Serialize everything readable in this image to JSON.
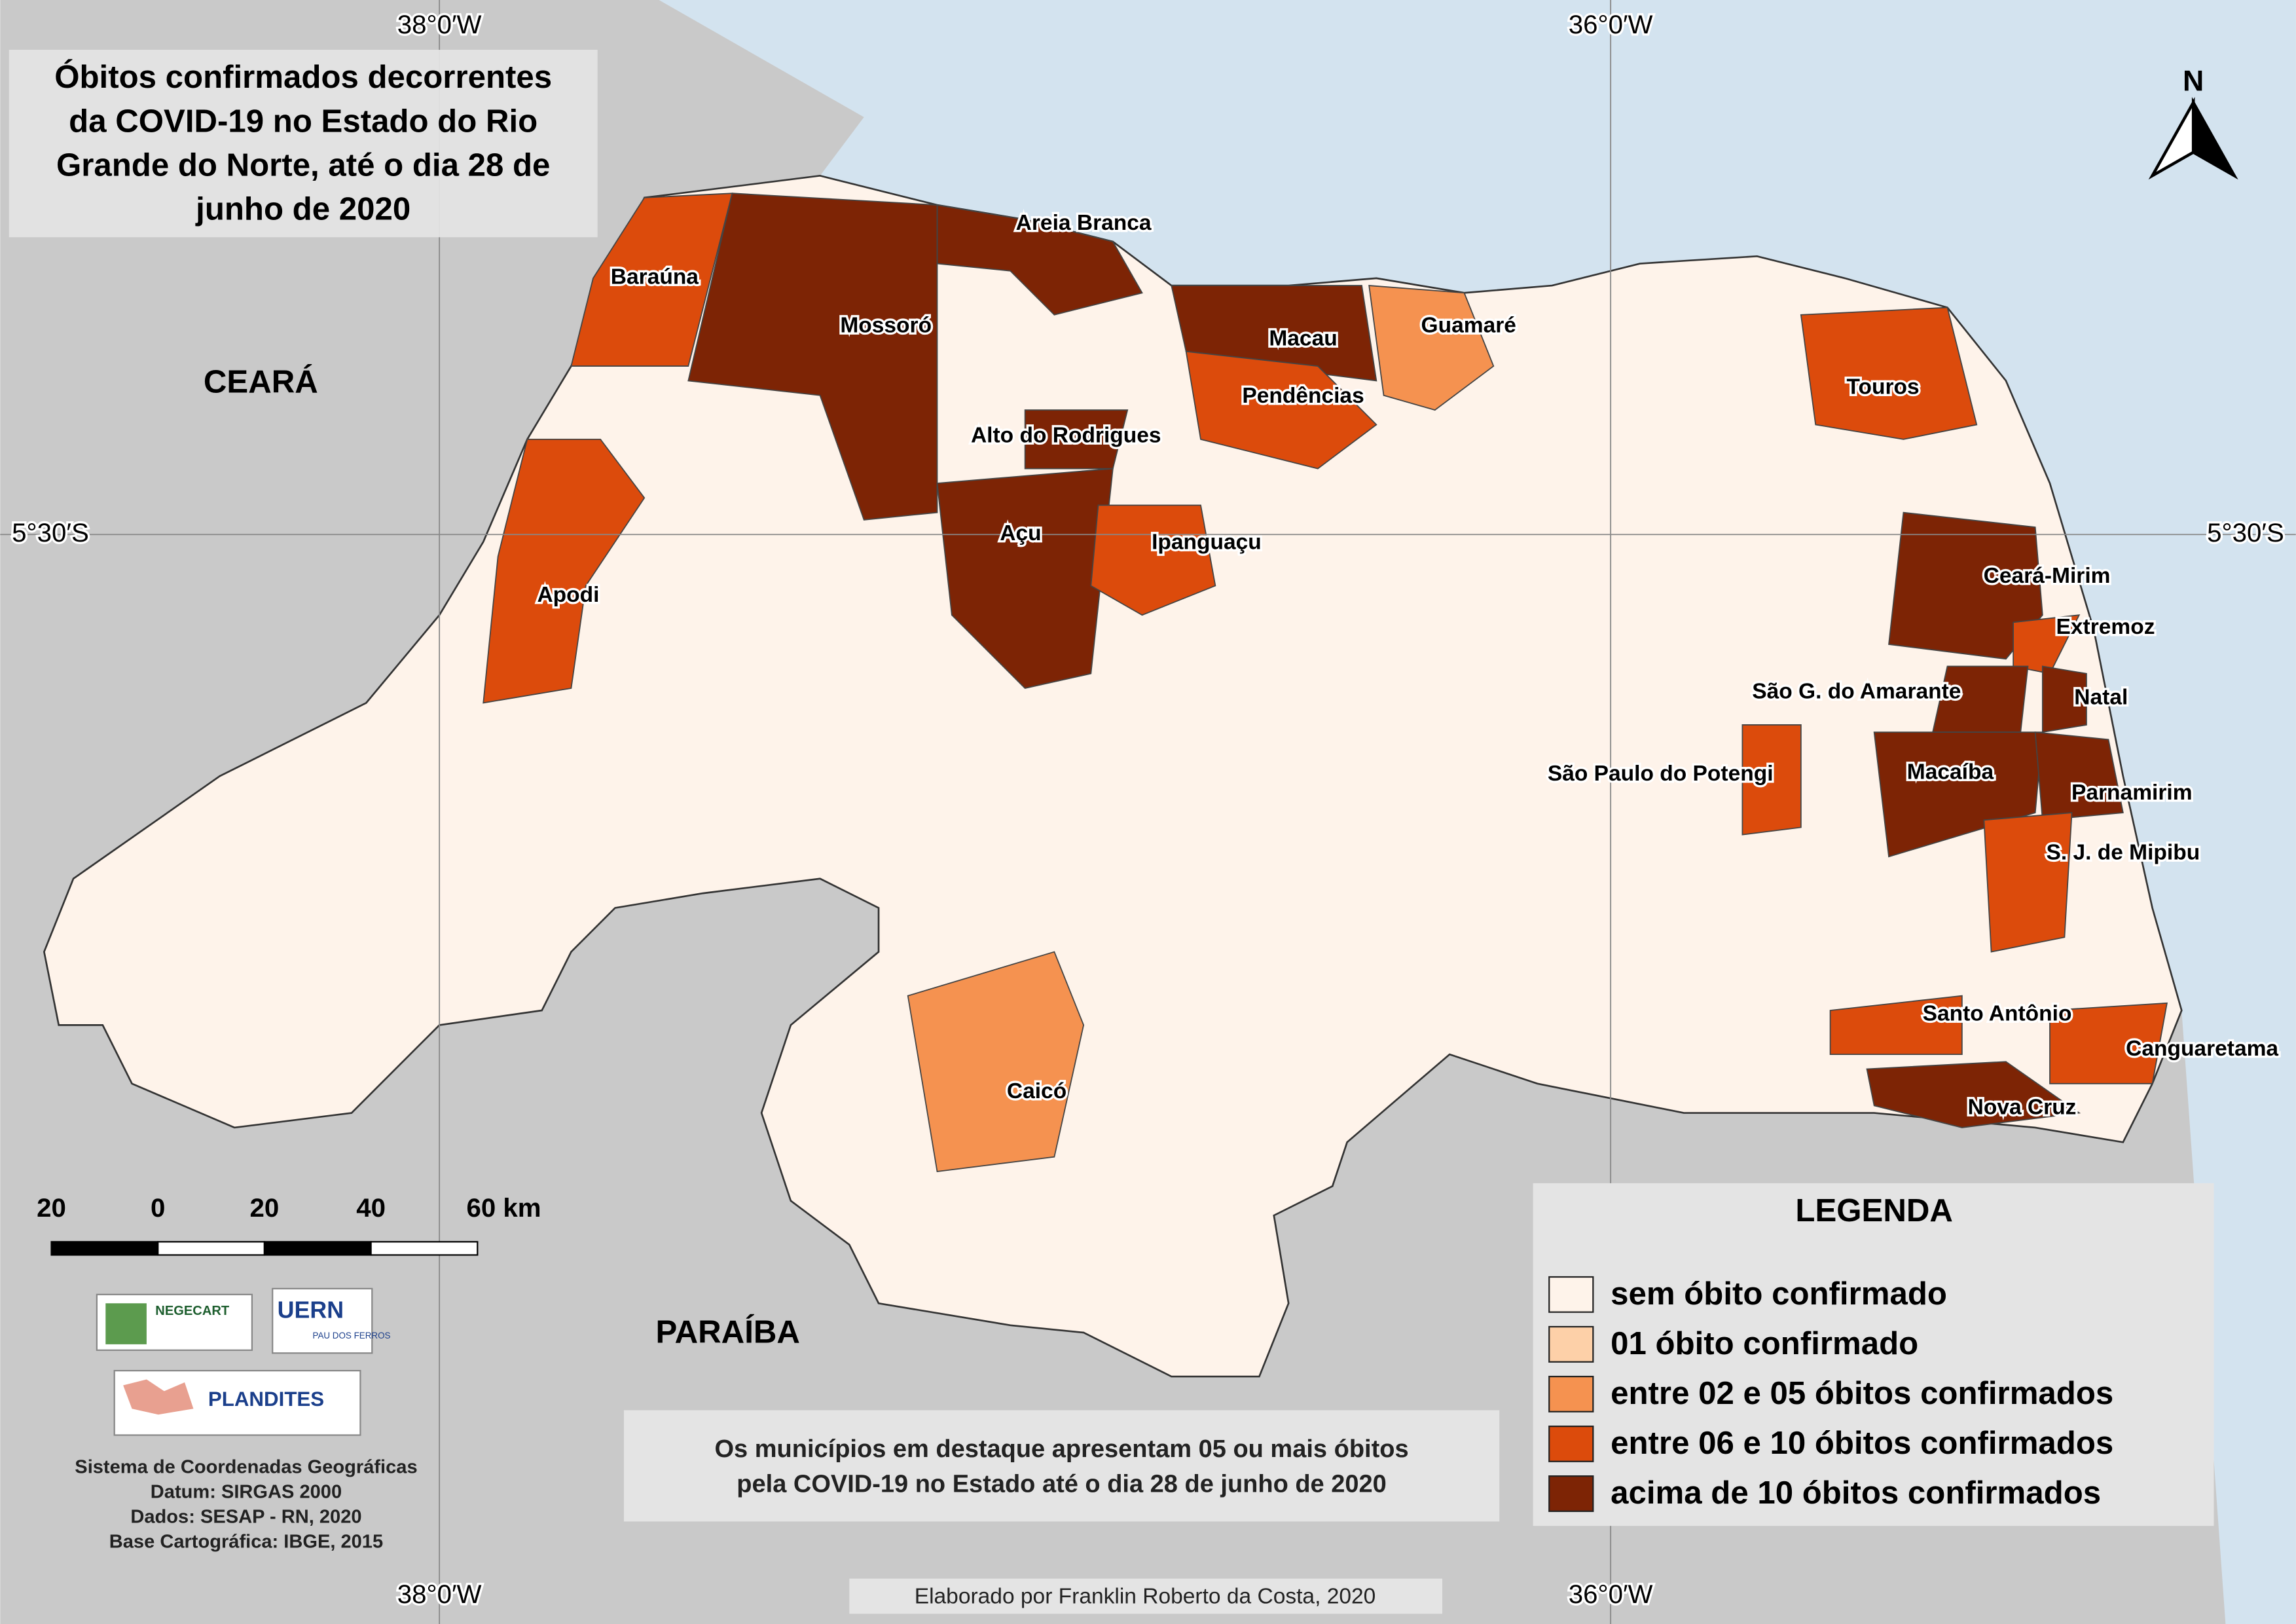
{
  "title": [
    "Óbitos confirmados decorrentes",
    "da COVID-19 no Estado do Rio",
    "Grande do Norte, até o dia 28 de",
    "junho de 2020"
  ],
  "coordinates": {
    "top": [
      "38°0′W",
      "36°0′W"
    ],
    "bottom": [
      "38°0′W",
      "36°0′W"
    ],
    "left": "5°30′S",
    "right": "5°30′S"
  },
  "north": "N",
  "states": [
    "CEARÁ",
    "PARAÍBA"
  ],
  "municipalities": [
    {
      "name": "Areia Branca",
      "class": 4
    },
    {
      "name": "Baraúna",
      "class": 3
    },
    {
      "name": "Mossoró",
      "class": 4
    },
    {
      "name": "Macau",
      "class": 4
    },
    {
      "name": "Guamaré",
      "class": 2
    },
    {
      "name": "Touros",
      "class": 3
    },
    {
      "name": "Pendências",
      "class": 3
    },
    {
      "name": "Alto do Rodrigues",
      "class": 4
    },
    {
      "name": "Açu",
      "class": 4
    },
    {
      "name": "Ipanguaçu",
      "class": 3
    },
    {
      "name": "Apodi",
      "class": 3
    },
    {
      "name": "Ceará-Mirim",
      "class": 4
    },
    {
      "name": "Extremoz",
      "class": 3
    },
    {
      "name": "São G. do Amarante",
      "class": 4
    },
    {
      "name": "Natal",
      "class": 4
    },
    {
      "name": "Macaíba",
      "class": 4
    },
    {
      "name": "São Paulo do Potengi",
      "class": 3
    },
    {
      "name": "Parnamirim",
      "class": 4
    },
    {
      "name": "S. J. de Mipibu",
      "class": 3
    },
    {
      "name": "Santo Antônio",
      "class": 3
    },
    {
      "name": "Canguaretama",
      "class": 3
    },
    {
      "name": "Nova Cruz",
      "class": 4
    },
    {
      "name": "Caicó",
      "class": 2
    }
  ],
  "legend": {
    "title": "LEGENDA",
    "items": [
      {
        "label": "sem óbito confirmado",
        "color": "#fef3ea"
      },
      {
        "label": "01 óbito confirmado",
        "color": "#fdd0a8"
      },
      {
        "label": "entre 02 e 05 óbitos confirmados",
        "color": "#f59250"
      },
      {
        "label": "entre 06 e 10 óbitos confirmados",
        "color": "#dc4b0c"
      },
      {
        "label": "acima de 10 óbitos confirmados",
        "color": "#7d2405"
      }
    ]
  },
  "note": [
    "Os municípios em destaque apresentam 05 ou mais óbitos",
    "pela COVID-19 no Estado até o dia 28 de junho de 2020"
  ],
  "scale": {
    "ticks": [
      {
        "value": -20,
        "label": "20"
      },
      0,
      20,
      40,
      {
        "value": 60,
        "label": "60 km"
      }
    ]
  },
  "credits": [
    "Sistema de Coordenadas Geográficas",
    "Datum: SIRGAS 2000",
    "Dados: SESAP - RN, 2020",
    "Base Cartográfica: IBGE, 2015"
  ],
  "author": "Elaborado por Franklin Roberto da Costa, 2020",
  "logos": {
    "negecart": "NEGECART",
    "uern": "UERN",
    "uern_sub": "PAU DOS FERROS",
    "plandites": "PLANDITES"
  }
}
